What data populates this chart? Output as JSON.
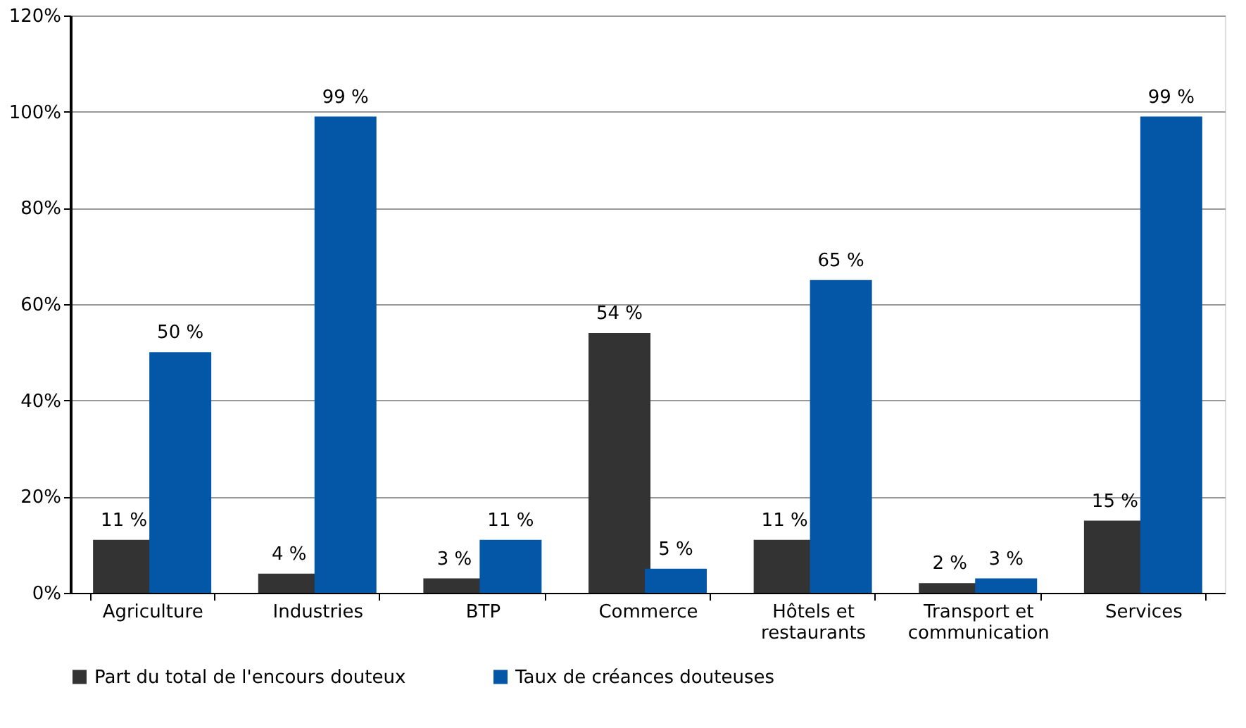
{
  "chart_data": {
    "type": "bar",
    "categories": [
      "Agriculture",
      "Industries",
      "BTP",
      "Commerce",
      "Hôtels et restaurants",
      "Transport et communication",
      "Services"
    ],
    "series": [
      {
        "name": "Part du total de l'encours douteux",
        "color": "#333333",
        "values": [
          11,
          4,
          3,
          54,
          11,
          2,
          15
        ],
        "value_labels": [
          "11 %",
          "4 %",
          "3 %",
          "54 %",
          "11 %",
          "2 %",
          "15 %"
        ]
      },
      {
        "name": "Taux de créances douteuses",
        "color": "#0456a6",
        "values": [
          50,
          99,
          11,
          5,
          65,
          3,
          99
        ],
        "value_labels": [
          "50 %",
          "99 %",
          "11 %",
          "5 %",
          "65 %",
          "3 %",
          "99 %"
        ]
      }
    ],
    "ylim": [
      0,
      120
    ],
    "yticks": [
      {
        "value": 0,
        "label": "0%"
      },
      {
        "value": 20,
        "label": "20%"
      },
      {
        "value": 40,
        "label": "40%"
      },
      {
        "value": 60,
        "label": "60%"
      },
      {
        "value": 80,
        "label": "80%"
      },
      {
        "value": 100,
        "label": "100%"
      },
      {
        "value": 120,
        "label": "120%"
      }
    ],
    "grid": "y",
    "legend": "bottom"
  }
}
